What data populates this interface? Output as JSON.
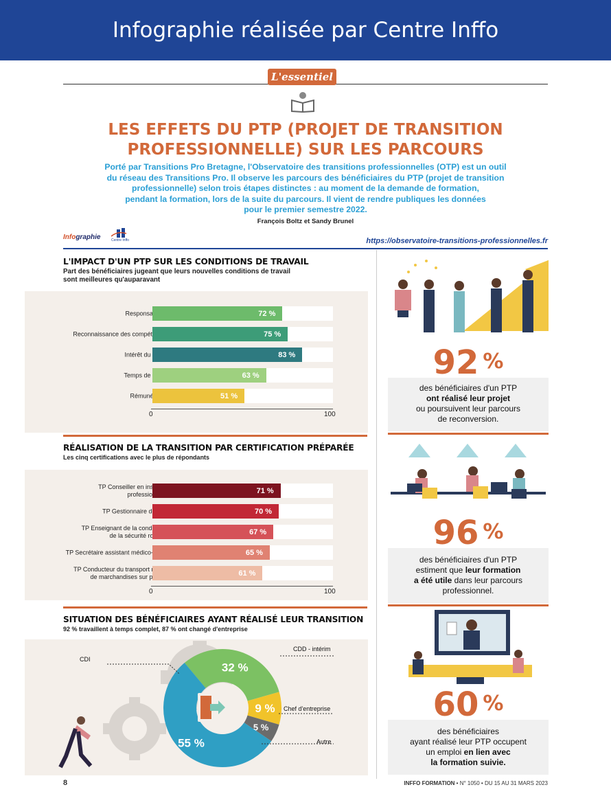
{
  "banner": {
    "title": "Infographie réalisée par Centre Inffo"
  },
  "essentiel": {
    "label": "L'essentiel"
  },
  "article": {
    "title_line1": "LES EFFETS DU PTP (PROJET DE TRANSITION",
    "title_line2": "PROFESSIONNELLE) SUR LES PARCOURS",
    "intro_lines": [
      "Porté par Transitions Pro Bretagne, l'Observatoire des transitions professionnelles (OTP) est un outil",
      "du réseau des Transitions Pro. Il observe les parcours des bénéficiaires du PTP (projet de transition",
      "professionnelle) selon trois étapes distinctes : au moment de la demande de formation,",
      "pendant la formation, lors de la suite du parcours. Il vient de rendre publiques les données",
      "pour le premier semestre 2022."
    ],
    "authors": "François Boltz et Sandy Brunel"
  },
  "brand": {
    "part1": "Info",
    "part2": "graphie",
    "logo_label": "Centre Inffo"
  },
  "source_url": "https://observatoire-transitions-professionnelles.fr",
  "colors": {
    "accent_orange": "#d2693a",
    "brand_blue": "#1f4596",
    "intro_blue": "#2a9fd5"
  },
  "section1": {
    "title": "L'IMPACT D'UN PTP SUR LES CONDITIONS DE TRAVAIL",
    "subtitle_line1": "Part des bénéficiaires jugeant que leurs nouvelles conditions de travail",
    "subtitle_line2": "sont meilleures qu'auparavant"
  },
  "section2": {
    "title": "RÉALISATION DE LA TRANSITION PAR CERTIFICATION PRÉPARÉE",
    "subtitle": "Les cinq certifications avec le plus de répondants"
  },
  "section3": {
    "title": "SITUATION DES BÉNÉFICIAIRES AYANT RÉALISÉ LEUR TRANSITION",
    "subtitle": "92 % travaillent à temps complet, 87 % ont changé d'entreprise"
  },
  "chart_data": [
    {
      "type": "bar",
      "orientation": "horizontal",
      "title": "L'IMPACT D'UN PTP SUR LES CONDITIONS DE TRAVAIL",
      "categories": [
        "Responsabilités",
        "Reconnaissance des compétences",
        "Intérêt du travail",
        "Temps de travail",
        "Rémunération"
      ],
      "values": [
        72,
        75,
        83,
        63,
        51
      ],
      "value_labels": [
        "72 %",
        "75 %",
        "83 %",
        "63 %",
        "51 %"
      ],
      "colors": [
        "#6dbb6b",
        "#3d9c78",
        "#2e7a80",
        "#9ed07f",
        "#ecc33d"
      ],
      "xlim": [
        0,
        100
      ],
      "ticks": [
        "0",
        "100"
      ]
    },
    {
      "type": "bar",
      "orientation": "horizontal",
      "title": "RÉALISATION DE LA TRANSITION PAR CERTIFICATION PRÉPARÉE",
      "categories": [
        "TP Conseiller en insertion\nprofessionnelle",
        "TP Gestionnaire de paie",
        "TP Enseignant de la conduite et\nde la sécurité routière",
        "TP Secrétaire assistant médico-social",
        "TP Conducteur du transport routier\nde marchandises sur porteur"
      ],
      "values": [
        71,
        70,
        67,
        65,
        61
      ],
      "value_labels": [
        "71 %",
        "70 %",
        "67 %",
        "65 %",
        "61 %"
      ],
      "colors": [
        "#7d1420",
        "#c22836",
        "#d55258",
        "#e08272",
        "#eebca5"
      ],
      "xlim": [
        0,
        100
      ],
      "ticks": [
        "0",
        "100"
      ]
    },
    {
      "type": "pie",
      "variant": "donut",
      "title": "SITUATION DES BÉNÉFICIAIRES AYANT RÉALISÉ LEUR TRANSITION",
      "categories": [
        "CDI",
        "CDD - intérim",
        "Chef d'entreprise",
        "Autre"
      ],
      "values": [
        55,
        32,
        9,
        5
      ],
      "value_labels": [
        "55 %",
        "32 %",
        "9 %",
        "5 %"
      ],
      "colors": [
        "#2f9fc4",
        "#7cc163",
        "#f1c32a",
        "#6b6b6b"
      ]
    }
  ],
  "stats": [
    {
      "number": "92",
      "pct": "%",
      "line1": "des bénéficiaires d'un PTP",
      "bold": "ont réalisé leur projet",
      "line3": "ou poursuivent leur parcours",
      "line4": "de reconversion."
    },
    {
      "number": "96",
      "pct": "%",
      "line1": "des bénéficiaires d'un PTP",
      "line2a": "estiment que ",
      "line2b": "leur formation",
      "line3a": "a été utile",
      "line3b": " dans leur parcours",
      "line4": "professionnel."
    },
    {
      "number": "60",
      "pct": "%",
      "line1": "des bénéficiaires",
      "line2": "ayant réalisé leur PTP occupent",
      "line3a": "un emploi ",
      "line3b": "en lien avec",
      "line4": "la formation suivie."
    }
  ],
  "footer": {
    "page": "8",
    "magazine_bold": "INFFO FORMATION",
    "issue": " • N° 1050 • DU 15 AU 31 MARS 2023"
  }
}
